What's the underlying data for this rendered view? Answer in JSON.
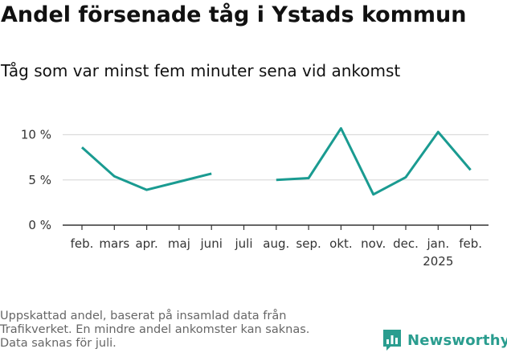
{
  "title": "Andel försenade tåg i Ystads kommun",
  "subtitle": "Tåg som var minst fem minuter sena vid ankomst",
  "footnote": [
    "Uppskattad andel, baserat på insamlad data från",
    "Trafikverket. En mindre andel ankomster kan saknas.",
    "Data saknas för juli."
  ],
  "brand": {
    "name": "Newsworthy",
    "logo_icon": "newsworthy-chart-logo-icon"
  },
  "colors": {
    "line": "#1a9b91",
    "grid": "#dcdcdc",
    "axis": "#333333"
  },
  "chart_data": {
    "type": "line",
    "categories": [
      "feb.",
      "mars",
      "apr.",
      "maj",
      "juni",
      "juli",
      "aug.",
      "sep.",
      "okt.",
      "nov.",
      "dec.",
      "jan.",
      "feb."
    ],
    "year_labels": [
      "",
      "",
      "",
      "",
      "",
      "",
      "",
      "",
      "",
      "",
      "",
      "2025",
      ""
    ],
    "series": [
      {
        "values": [
          8.6,
          5.4,
          3.9,
          4.8,
          5.7,
          null,
          5.0,
          5.2,
          10.7,
          3.4,
          5.3,
          10.3,
          6.1
        ]
      }
    ],
    "yticks": [
      0,
      5,
      10
    ],
    "ytick_labels": [
      "0 %",
      "5 %",
      "10 %"
    ],
    "ylim": [
      0,
      12
    ],
    "grid": true
  }
}
